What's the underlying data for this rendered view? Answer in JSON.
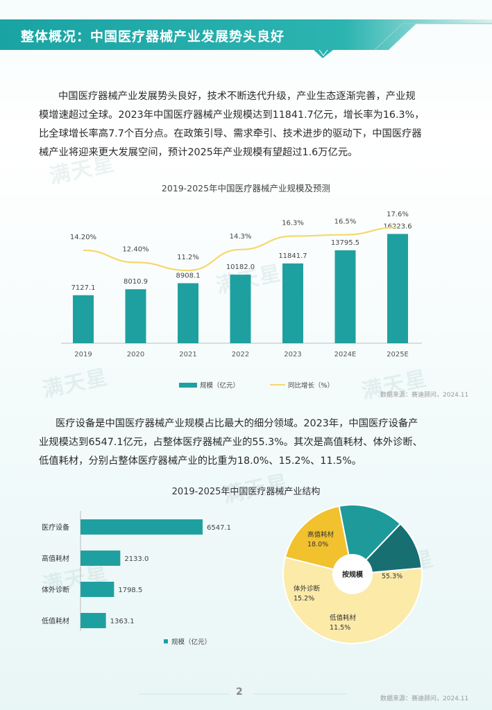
{
  "header": {
    "title": "整体概况：中国医疗器械产业发展势头良好",
    "colors": {
      "band": "#1aa5a5",
      "band_dark": "#12858a"
    }
  },
  "intro_paragraph": {
    "line1": "中国医疗器械产业发展势头良好，技术不断迭代升级，产业生态逐渐完善，产业规",
    "line2": "模增速超过全球。2023年中国医疗器械产业规模达到11841.7亿元，增长率为16.3%，",
    "line3": "比全球增长率高7.7个百分点。在政策引导、需求牵引、技术进步的驱动下，中国医疗器",
    "line4": "械产业将迎来更大发展空间，预计2025年产业规模有望超过1.6万亿元。"
  },
  "segment_paragraph": {
    "line1": "医疗设备是中国医疗器械产业规模占比最大的细分领域。2023年，中国医疗设备产",
    "line2": "业规模达到6547.1亿元，占整体医疗器械产业的55.3%。其次是高值耗材、体外诊断、",
    "line3": "低值耗材，分别占整体医疗器械产业的比重为18.0%、15.2%、11.5%。"
  },
  "watermark": {
    "brand": "满天星"
  },
  "chart_data": [
    {
      "type": "bar",
      "title": "2019-2025年中国医疗器械产业规模及预测",
      "categories": [
        "2019",
        "2020",
        "2021",
        "2022",
        "2023",
        "2024E",
        "2025E"
      ],
      "series": [
        {
          "name": "规模（亿元）",
          "type": "bar",
          "values": [
            7127.1,
            8010.9,
            8908.1,
            10182.0,
            11841.7,
            13795.5,
            16223.6
          ],
          "labels": [
            "7127.1",
            "8010.9",
            "8908.1",
            "10182.0",
            "11841.7",
            "13795.5",
            "16223.6"
          ],
          "color": "#1fa0a0"
        },
        {
          "name": "同比增长（%）",
          "type": "line",
          "values": [
            14.2,
            12.4,
            11.2,
            14.3,
            16.3,
            16.5,
            17.6
          ],
          "labels": [
            "14.20%",
            "12.40%",
            "11.2%",
            "14.3%",
            "16.3%",
            "16.5%",
            "17.6%"
          ],
          "color": "#f5d86a"
        }
      ],
      "source": "数据来源：赛迪顾问，2024.11"
    },
    {
      "type": "bar",
      "orientation": "horizontal",
      "title": "2019-2025年中国医疗器械产业结构",
      "categories": [
        "医疗设备",
        "高值耗材",
        "体外诊断",
        "低值耗材"
      ],
      "series": [
        {
          "name": "规模（亿元）",
          "values": [
            6547.1,
            2133.0,
            1798.5,
            1363.1
          ],
          "labels": [
            "6547.1",
            "2133.0",
            "1798.5",
            "1363.1"
          ],
          "color": "#1fa0a0"
        }
      ]
    },
    {
      "type": "pie",
      "center_label": "按规模",
      "slices": [
        {
          "name": "医疗设备",
          "value": 55.3,
          "label": "55.3%",
          "color": "#fbeaa8"
        },
        {
          "name": "高值耗材",
          "value": 18.0,
          "label": "18.0%",
          "color": "#f2c12e"
        },
        {
          "name": "体外诊断",
          "value": 15.2,
          "label": "15.2%",
          "color": "#1e9a9a"
        },
        {
          "name": "低值耗材",
          "value": 11.5,
          "label": "11.5%",
          "color": "#176f72"
        }
      ],
      "source": "数据来源：赛迪顾问，2024.11"
    }
  ],
  "footer": {
    "page_number": "2"
  }
}
